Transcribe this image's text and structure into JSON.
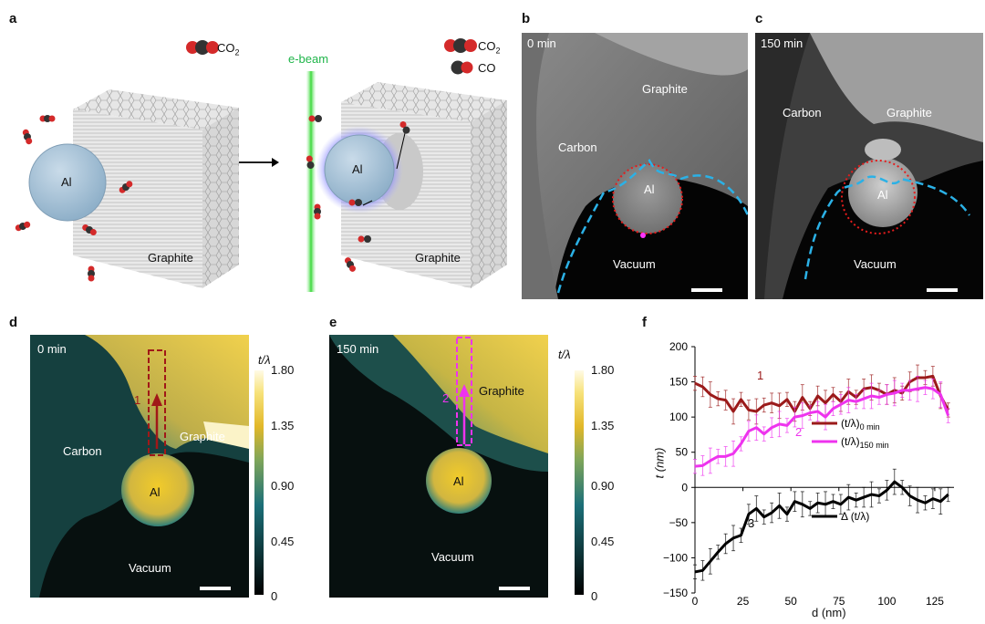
{
  "panels": {
    "a": {
      "label": "a",
      "co2_label": "CO",
      "co2_sub": "2",
      "co_label": "CO",
      "ebeam_label": "e-beam",
      "al_label": "Al",
      "graphite_label": "Graphite"
    },
    "b": {
      "label": "b",
      "time": "0 min",
      "graphite": "Graphite",
      "carbon": "Carbon",
      "al": "Al",
      "vacuum": "Vacuum"
    },
    "c": {
      "label": "c",
      "time": "150 min",
      "graphite": "Graphite",
      "carbon": "Carbon",
      "al": "Al",
      "vacuum": "Vacuum"
    },
    "d": {
      "label": "d",
      "time": "0 min",
      "graphite": "Graphite",
      "carbon": "Carbon",
      "al": "Al",
      "vacuum": "Vacuum",
      "marker": "1"
    },
    "e": {
      "label": "e",
      "time": "150 min",
      "graphite": "Graphite",
      "al": "Al",
      "vacuum": "Vacuum",
      "marker": "2"
    },
    "f": {
      "label": "f"
    }
  },
  "colorbar": {
    "title": "t/λ",
    "ticks": [
      "1.80",
      "1.35",
      "0.90",
      "0.45",
      "0"
    ]
  },
  "chart_data": {
    "type": "line",
    "xlabel": "d (nm)",
    "ylabel": "t (nm)",
    "xlim": [
      0,
      135
    ],
    "ylim": [
      -150,
      200
    ],
    "xticks": [
      "0",
      "25",
      "50",
      "75",
      "100",
      "125"
    ],
    "yticks": [
      "200",
      "150",
      "100",
      "50",
      "0",
      "−50",
      "−100",
      "−150"
    ],
    "x": [
      0,
      4,
      8,
      12,
      16,
      20,
      24,
      28,
      32,
      36,
      40,
      44,
      48,
      52,
      56,
      60,
      64,
      68,
      72,
      76,
      80,
      84,
      88,
      92,
      96,
      100,
      104,
      108,
      112,
      116,
      120,
      124,
      128,
      132
    ],
    "series": [
      {
        "name": "(t/λ)",
        "name_sub": "0 min",
        "label": "1",
        "color": "#9b1a1a",
        "values": [
          148,
          143,
          132,
          126,
          124,
          108,
          125,
          110,
          108,
          117,
          120,
          116,
          125,
          108,
          128,
          112,
          130,
          120,
          132,
          122,
          136,
          128,
          140,
          142,
          138,
          132,
          138,
          134,
          150,
          156,
          156,
          158,
          130,
          110
        ]
      },
      {
        "name": "(t/λ)",
        "name_sub": "150 min",
        "label": "2",
        "color": "#ee33ee",
        "values": [
          30,
          31,
          38,
          44,
          44,
          48,
          62,
          80,
          85,
          76,
          85,
          90,
          88,
          100,
          102,
          106,
          108,
          100,
          112,
          118,
          124,
          122,
          126,
          130,
          128,
          132,
          134,
          138,
          138,
          140,
          142,
          140,
          132,
          102
        ]
      },
      {
        "name": "Δ (t/λ)",
        "label": "3",
        "color": "#000000",
        "values": [
          -120,
          -118,
          -105,
          -92,
          -80,
          -72,
          -68,
          -38,
          -30,
          -42,
          -36,
          -26,
          -38,
          -20,
          -24,
          -30,
          -22,
          -24,
          -20,
          -24,
          -14,
          -18,
          -14,
          -10,
          -12,
          -4,
          8,
          0,
          -12,
          -18,
          -22,
          -16,
          -20,
          -10
        ]
      }
    ]
  }
}
